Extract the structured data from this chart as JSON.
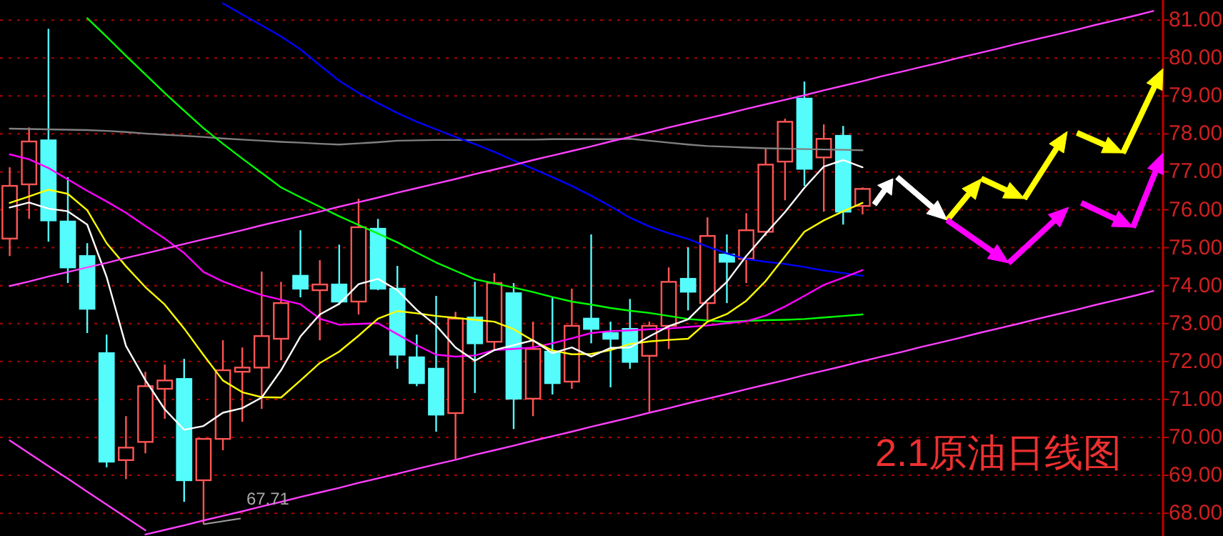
{
  "chart_data": {
    "type": "candlestick",
    "title": "2.1原油日线图",
    "categories": [
      null,
      null,
      null,
      null,
      null,
      null,
      null,
      null,
      null,
      null,
      null,
      null,
      null,
      null,
      null,
      null,
      null,
      null,
      null,
      null,
      null,
      null,
      null,
      null,
      null,
      null,
      null,
      null,
      null,
      null,
      null,
      null,
      null,
      null,
      null,
      null,
      null,
      null,
      null,
      null,
      null,
      null,
      null,
      null,
      null,
      null,
      null,
      null,
      null,
      null,
      null,
      null,
      null,
      null,
      null,
      null,
      null,
      null,
      null,
      null
    ],
    "ohlc": [
      [
        75.24,
        77.12,
        74.78,
        76.63
      ],
      [
        76.67,
        78.17,
        75.76,
        77.8
      ],
      [
        77.83,
        80.77,
        75.16,
        75.72
      ],
      [
        75.69,
        76.86,
        74.07,
        74.48
      ],
      [
        74.78,
        75.12,
        72.75,
        73.39
      ],
      [
        72.22,
        72.71,
        69.21,
        69.36
      ],
      [
        69.4,
        70.56,
        68.9,
        69.73
      ],
      [
        69.88,
        71.73,
        69.58,
        71.35
      ],
      [
        71.28,
        71.92,
        70.49,
        71.5
      ],
      [
        71.54,
        72.07,
        68.3,
        68.87
      ],
      [
        68.87,
        69.96,
        67.71,
        69.96
      ],
      [
        69.96,
        72.56,
        69.66,
        71.77
      ],
      [
        71.73,
        72.37,
        70.41,
        71.84
      ],
      [
        71.84,
        74.37,
        70.75,
        72.67
      ],
      [
        72.6,
        74.1,
        72.03,
        73.54
      ],
      [
        74.26,
        75.46,
        73.69,
        73.92
      ],
      [
        73.88,
        74.67,
        72.56,
        74.03
      ],
      [
        74.03,
        75.08,
        73.5,
        73.58
      ],
      [
        73.58,
        76.29,
        73.24,
        75.54
      ],
      [
        75.5,
        75.76,
        73.88,
        73.92
      ],
      [
        73.92,
        74.52,
        71.81,
        72.18
      ],
      [
        72.11,
        72.71,
        71.35,
        71.43
      ],
      [
        71.81,
        73.73,
        70.15,
        70.6
      ],
      [
        70.64,
        73.31,
        69.43,
        73.13
      ],
      [
        73.16,
        74.1,
        71.17,
        72.48
      ],
      [
        72.52,
        74.33,
        72.3,
        74.07
      ],
      [
        73.8,
        74.07,
        70.22,
        71.02
      ],
      [
        71.02,
        73.05,
        70.56,
        72.33
      ],
      [
        72.26,
        73.69,
        71.13,
        71.43
      ],
      [
        71.47,
        73.92,
        71.28,
        72.94
      ],
      [
        73.13,
        75.35,
        72.48,
        72.86
      ],
      [
        72.75,
        73.05,
        71.32,
        72.6
      ],
      [
        72.86,
        73.65,
        71.81,
        71.99
      ],
      [
        72.15,
        73.05,
        70.68,
        72.94
      ],
      [
        72.94,
        74.48,
        72.33,
        74.1
      ],
      [
        74.18,
        75.01,
        73.35,
        73.84
      ],
      [
        73.54,
        75.8,
        73.05,
        75.31
      ],
      [
        74.82,
        75.35,
        73.54,
        74.63
      ],
      [
        74.71,
        75.91,
        74.07,
        75.46
      ],
      [
        75.42,
        77.61,
        75.31,
        77.19
      ],
      [
        77.27,
        78.4,
        76.25,
        78.32
      ],
      [
        78.93,
        79.38,
        76.63,
        77.08
      ],
      [
        77.38,
        78.25,
        75.95,
        77.87
      ],
      [
        77.95,
        78.21,
        75.61,
        75.95
      ],
      [
        76.1,
        76.59,
        75.88,
        76.55
      ],
      null,
      null,
      null,
      null,
      null,
      null,
      null,
      null,
      null,
      null,
      null,
      null,
      null,
      null,
      null
    ],
    "colors": [
      "#ff5555",
      "#ff5555",
      "#54fcfc",
      "#54fcfc",
      "#54fcfc",
      "#54fcfc",
      "#ff5555",
      "#ff5555",
      "#ff5555",
      "#54fcfc",
      "#ff5555",
      "#ff5555",
      "#ff5555",
      "#ff5555",
      "#ff5555",
      "#54fcfc",
      "#ff5555",
      "#54fcfc",
      "#ff5555",
      "#54fcfc",
      "#54fcfc",
      "#54fcfc",
      "#54fcfc",
      "#ff5555",
      "#54fcfc",
      "#ff5555",
      "#54fcfc",
      "#ff5555",
      "#54fcfc",
      "#ff5555",
      "#54fcfc",
      "#54fcfc",
      "#54fcfc",
      "#ff5555",
      "#ff5555",
      "#54fcfc",
      "#ff5555",
      "#54fcfc",
      "#ff5555",
      "#ff5555",
      "#ff5555",
      "#54fcfc",
      "#ff5555",
      "#54fcfc",
      "#ff5555",
      null,
      null,
      null,
      null,
      null,
      null,
      null,
      null,
      null,
      null,
      null,
      null,
      null,
      null,
      null
    ],
    "series": [
      {
        "type": "line",
        "color": "#808080",
        "values": [
          78.14,
          78.13,
          78.12,
          78.11,
          78.1,
          78.08,
          78.05,
          78.01,
          77.98,
          77.95,
          77.92,
          77.88,
          77.85,
          77.82,
          77.79,
          77.77,
          77.74,
          77.72,
          77.75,
          77.78,
          77.82,
          77.83,
          77.84,
          77.84,
          77.84,
          77.85,
          77.85,
          77.85,
          77.86,
          77.86,
          77.86,
          77.86,
          77.87,
          77.82,
          77.77,
          77.72,
          77.68,
          77.66,
          77.64,
          77.62,
          77.61,
          77.6,
          77.59,
          77.58,
          77.57,
          null,
          null,
          null,
          null,
          null,
          null,
          null,
          null,
          null,
          null,
          null,
          null,
          null,
          null,
          null
        ]
      },
      {
        "type": "line",
        "color": "#00ff00",
        "values": [
          null,
          null,
          null,
          null,
          81.05,
          80.56,
          80.06,
          79.57,
          79.08,
          78.61,
          78.15,
          77.74,
          77.35,
          76.97,
          76.59,
          76.33,
          76.08,
          75.83,
          75.6,
          75.37,
          75.14,
          74.87,
          74.61,
          74.39,
          74.17,
          74.06,
          73.95,
          73.83,
          73.7,
          73.58,
          73.5,
          73.41,
          73.34,
          73.28,
          73.2,
          73.12,
          73.08,
          73.05,
          73.07,
          73.09,
          73.1,
          73.12,
          73.16,
          73.2,
          73.24,
          null,
          null,
          null,
          null,
          null,
          null,
          null,
          null,
          null,
          null,
          null,
          null,
          null,
          null,
          null
        ]
      },
      {
        "type": "line",
        "color": "#0000ff",
        "values": [
          null,
          null,
          null,
          null,
          null,
          null,
          null,
          null,
          null,
          null,
          null,
          81.44,
          81.15,
          80.86,
          80.57,
          80.23,
          79.81,
          79.4,
          79.08,
          78.81,
          78.55,
          78.32,
          78.12,
          77.92,
          77.73,
          77.53,
          77.3,
          77.08,
          76.86,
          76.63,
          76.37,
          76.09,
          75.79,
          75.56,
          75.38,
          75.23,
          75.03,
          74.85,
          74.7,
          74.63,
          74.57,
          74.49,
          74.4,
          74.33,
          74.26,
          null,
          null,
          null,
          null,
          null,
          null,
          null,
          null,
          null,
          null,
          null,
          null,
          null,
          null,
          null
        ]
      },
      {
        "type": "line",
        "color": "#ff00ff",
        "values": [
          77.46,
          77.33,
          77.1,
          76.8,
          76.5,
          76.22,
          75.92,
          75.57,
          75.24,
          74.86,
          74.36,
          74.11,
          73.92,
          73.75,
          73.63,
          73.51,
          73.13,
          72.97,
          72.99,
          73.01,
          72.72,
          72.43,
          72.18,
          72.13,
          72.16,
          72.3,
          72.33,
          72.37,
          72.48,
          72.61,
          72.75,
          72.8,
          72.82,
          72.85,
          72.87,
          72.91,
          72.95,
          73.01,
          73.06,
          73.21,
          73.45,
          73.73,
          74.02,
          74.21,
          74.41,
          null,
          null,
          null,
          null,
          null,
          null,
          null,
          null,
          null,
          null,
          null,
          null,
          null,
          null,
          null
        ]
      },
      {
        "type": "line",
        "color": "#ffff00",
        "values": [
          76.18,
          76.35,
          76.53,
          76.42,
          75.99,
          75.12,
          74.51,
          73.96,
          73.5,
          72.87,
          72.17,
          71.5,
          71.19,
          71.06,
          71.05,
          71.5,
          71.96,
          72.26,
          72.68,
          73.13,
          73.33,
          73.27,
          73.2,
          73.15,
          73.1,
          73.05,
          72.85,
          72.55,
          72.29,
          72.19,
          72.2,
          72.3,
          72.46,
          72.53,
          72.57,
          72.6,
          73.05,
          73.25,
          73.6,
          74.12,
          74.77,
          75.42,
          75.72,
          75.96,
          76.18,
          null,
          null,
          null,
          null,
          null,
          null,
          null,
          null,
          null,
          null,
          null,
          null,
          null,
          null,
          null
        ]
      },
      {
        "type": "line",
        "color": "#ffffff",
        "values": [
          76.06,
          76.19,
          76.03,
          75.96,
          75.61,
          74.23,
          72.41,
          71.51,
          70.74,
          70.2,
          70.3,
          70.65,
          70.77,
          71.05,
          71.77,
          72.66,
          73.24,
          73.52,
          74.04,
          74.18,
          73.88,
          73.36,
          72.95,
          72.37,
          72.02,
          72.3,
          72.43,
          72.56,
          72.22,
          72.37,
          72.13,
          72.36,
          72.37,
          72.66,
          72.93,
          73.11,
          73.62,
          74.1,
          74.78,
          75.37,
          75.94,
          76.58,
          77.14,
          77.31,
          77.12,
          null,
          null,
          null,
          null,
          null,
          null,
          null,
          null,
          null,
          null,
          null,
          null,
          null,
          null,
          null
        ]
      },
      {
        "type": "line",
        "color": "#ff40ff",
        "values": [
          73.99,
          74.11,
          74.24,
          74.36,
          74.48,
          74.6,
          74.73,
          74.85,
          74.97,
          75.1,
          75.22,
          75.34,
          75.46,
          75.59,
          75.71,
          75.83,
          75.95,
          76.08,
          76.2,
          76.32,
          76.45,
          76.57,
          76.69,
          76.81,
          76.94,
          77.06,
          77.18,
          77.31,
          77.43,
          77.55,
          77.67,
          77.8,
          77.92,
          78.04,
          78.17,
          78.29,
          78.41,
          78.53,
          78.66,
          78.78,
          78.9,
          79.02,
          79.15,
          79.27,
          79.39,
          79.52,
          79.64,
          79.76,
          79.88,
          80.01,
          80.13,
          80.25,
          80.38,
          80.5,
          80.62,
          80.74,
          80.87,
          80.99,
          81.11,
          81.24
        ]
      },
      {
        "type": "line",
        "color": "#ff40ff",
        "values": [
          69.92,
          69.58,
          69.24,
          68.91,
          68.57,
          68.23,
          67.89,
          67.55,
          null,
          null,
          null,
          null,
          null,
          null,
          null,
          null,
          null,
          null,
          null,
          null,
          null,
          null,
          null,
          null,
          null,
          null,
          null,
          null,
          null,
          null,
          null,
          null,
          null,
          null,
          null,
          null,
          null,
          null,
          null,
          null,
          null,
          null,
          null,
          null,
          null,
          null,
          null,
          null,
          null,
          null,
          null,
          null,
          null,
          null,
          null,
          null,
          null,
          null,
          null,
          null
        ]
      },
      {
        "type": "line",
        "color": "#ff40ff",
        "values": [
          null,
          null,
          null,
          null,
          null,
          null,
          null,
          67.44,
          67.56,
          67.68,
          67.81,
          67.93,
          68.05,
          68.18,
          68.3,
          68.43,
          68.55,
          68.67,
          68.8,
          68.92,
          69.04,
          69.17,
          69.29,
          69.41,
          69.54,
          69.66,
          69.78,
          69.91,
          70.03,
          70.15,
          70.28,
          70.4,
          70.52,
          70.65,
          70.77,
          70.9,
          71.02,
          71.14,
          71.27,
          71.39,
          71.51,
          71.64,
          71.76,
          71.88,
          72.01,
          72.13,
          72.25,
          72.38,
          72.5,
          72.62,
          72.75,
          72.87,
          72.99,
          73.12,
          73.24,
          73.36,
          73.49,
          73.61,
          73.73,
          73.86
        ]
      }
    ],
    "annotations": [
      "67.71"
    ],
    "ylim": [
      67.4,
      81.53
    ],
    "yticks": [
      {
        "value": 68,
        "label": "68.00"
      },
      {
        "value": 69,
        "label": "69.00"
      },
      {
        "value": 70,
        "label": "70.00"
      },
      {
        "value": 71,
        "label": "71.00"
      },
      {
        "value": 72,
        "label": "72.00"
      },
      {
        "value": 73,
        "label": "73.00"
      },
      {
        "value": 74,
        "label": "74.00"
      },
      {
        "value": 75,
        "label": "75.00"
      },
      {
        "value": 76,
        "label": "76.00"
      },
      {
        "value": 77,
        "label": "77.00"
      },
      {
        "value": 78,
        "label": "78.00"
      },
      {
        "value": 79,
        "label": "79.00"
      },
      {
        "value": 80,
        "label": "80.00"
      },
      {
        "value": 81,
        "label": "81.00"
      }
    ],
    "grid": "y",
    "tick_labels": "y"
  }
}
